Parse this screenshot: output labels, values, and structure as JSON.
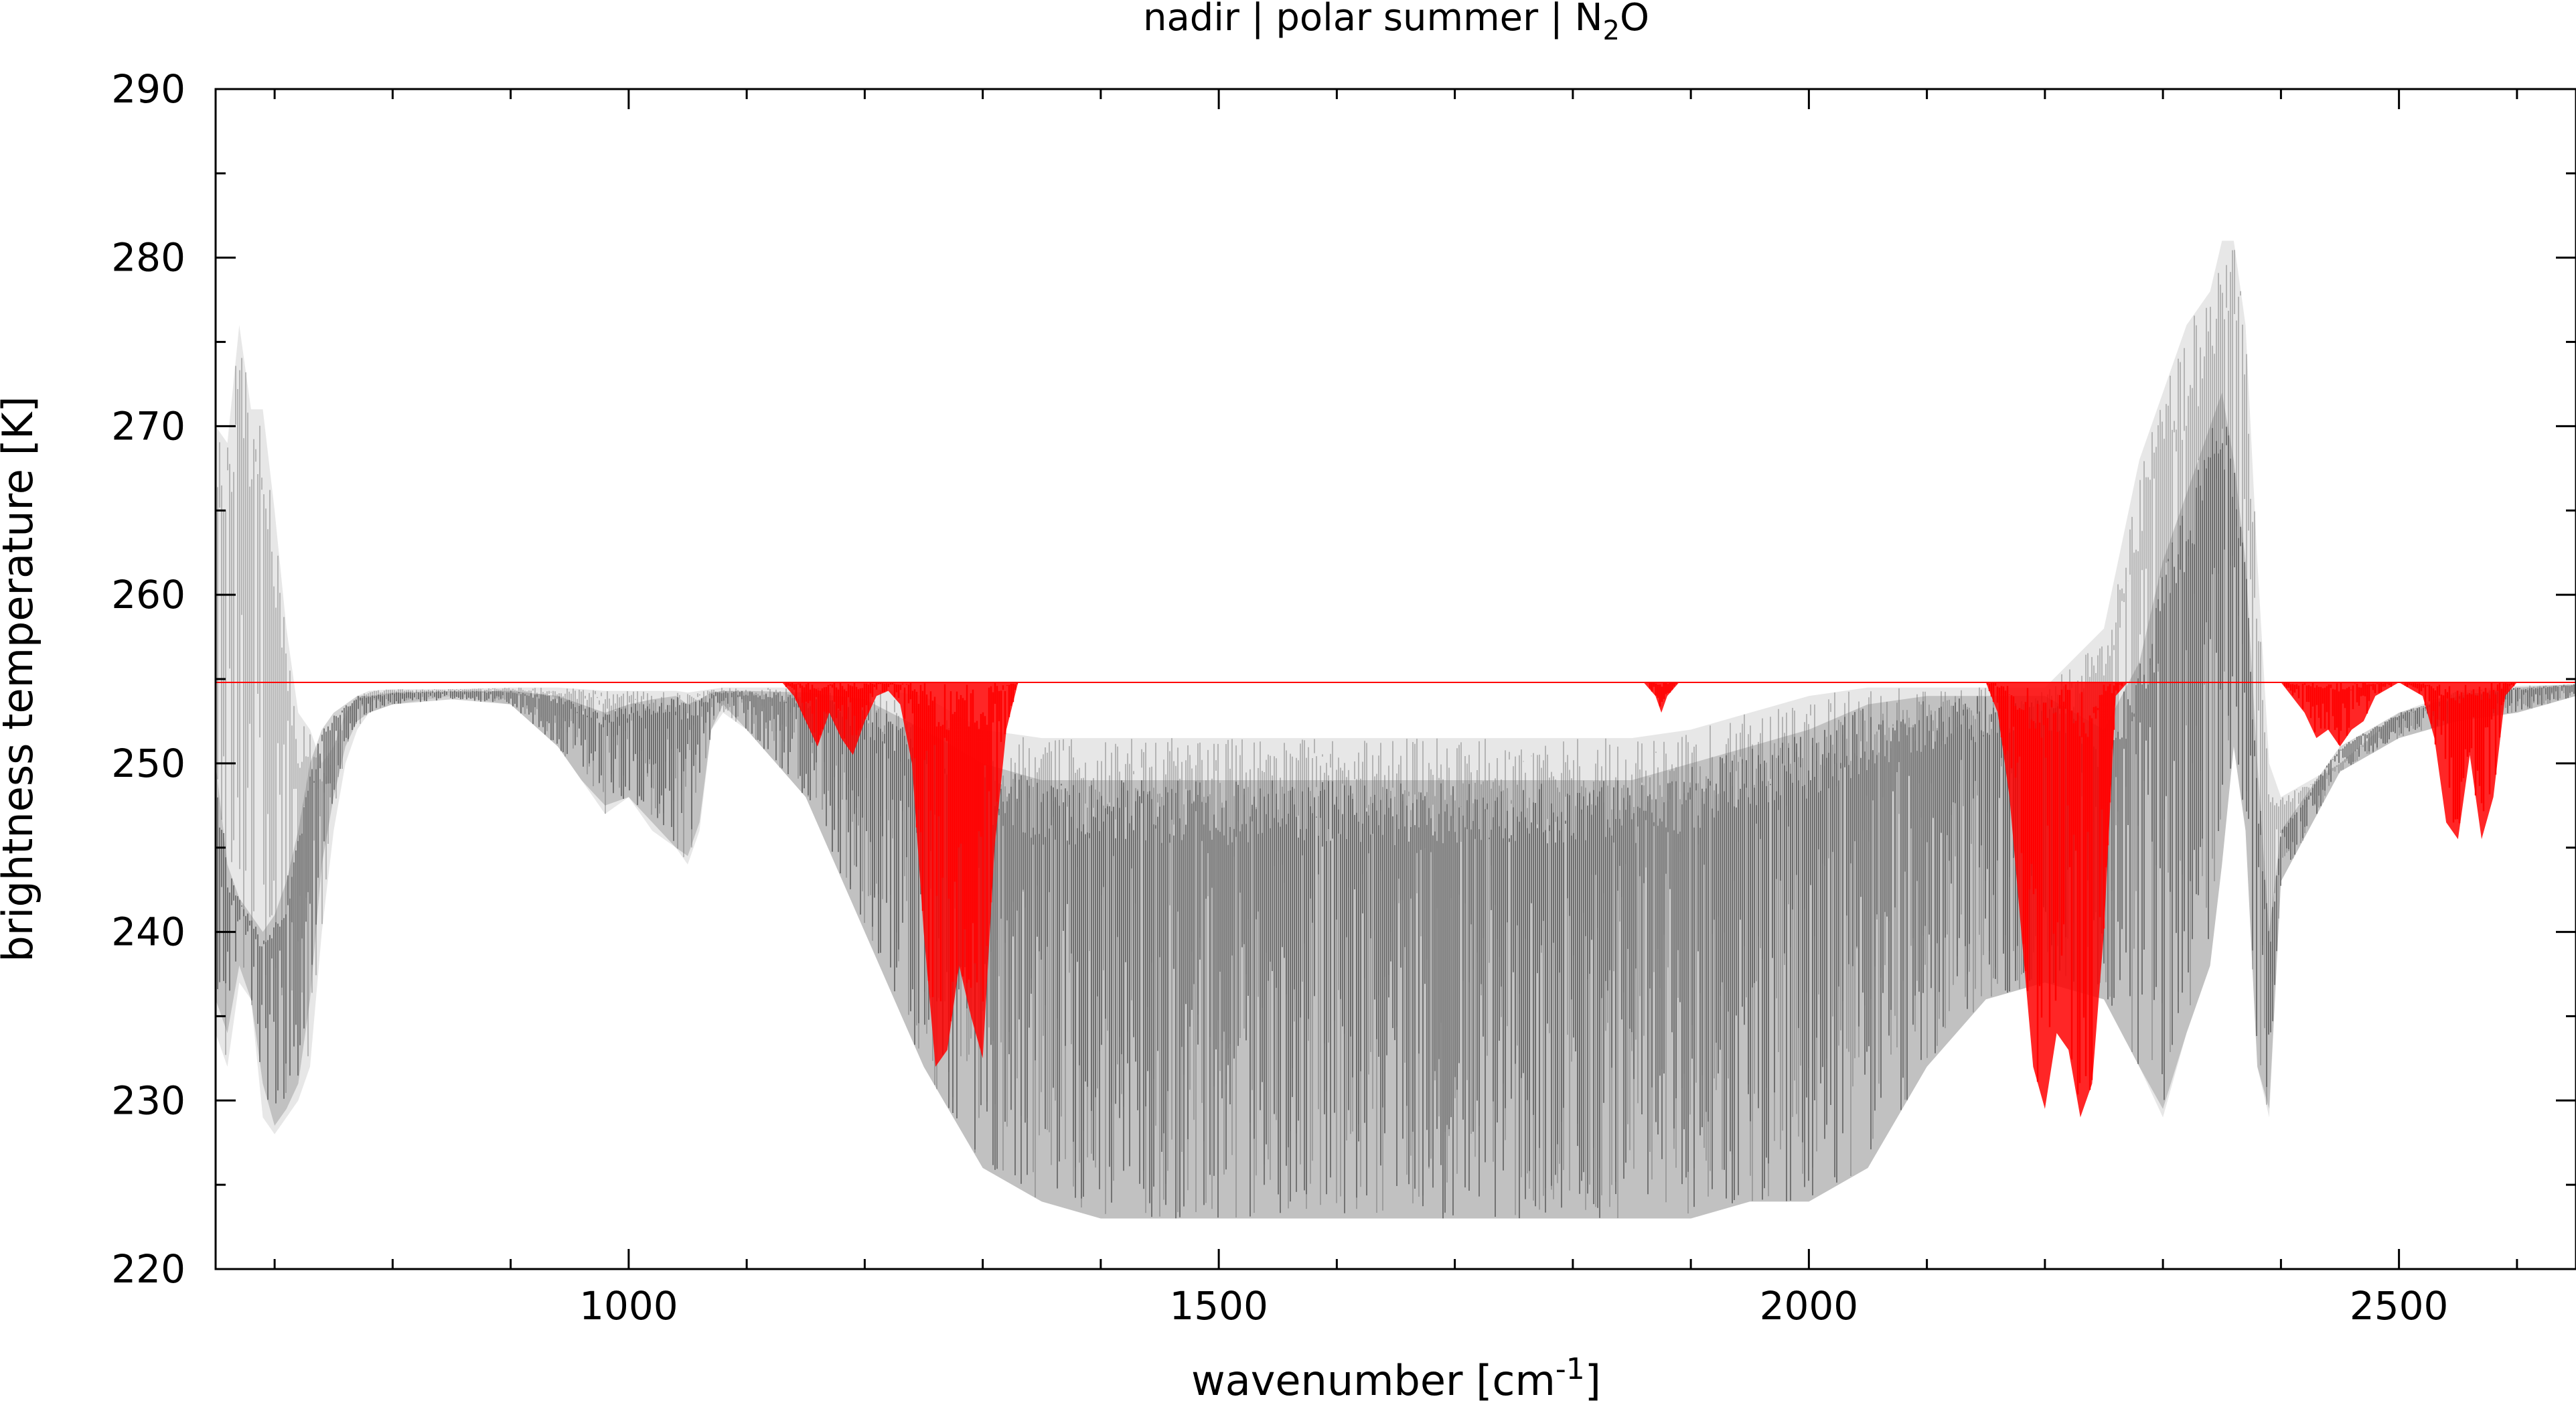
{
  "chart_data": {
    "type": "line",
    "title": {
      "prefix": "nadir | polar summer | N",
      "sub": "2",
      "suffix": "O"
    },
    "xlabel": {
      "prefix": "wavenumber [cm",
      "sup": "-1",
      "suffix": "]"
    },
    "ylabel": "brightness temperature [K]",
    "xlim": [
      650,
      2650
    ],
    "ylim": [
      220,
      290
    ],
    "xticks": [
      1000,
      1500,
      2000,
      2500
    ],
    "yticks": [
      220,
      230,
      240,
      250,
      260,
      270,
      280,
      290
    ],
    "grid": false,
    "legend": "none",
    "series": [
      {
        "style": "envelope",
        "color": "#a8a8a8",
        "x": [
          650,
          660,
          670,
          680,
          690,
          700,
          710,
          720,
          730,
          740,
          750,
          760,
          770,
          780,
          800,
          850,
          900,
          940,
          960,
          980,
          1000,
          1020,
          1040,
          1050,
          1060,
          1070,
          1080,
          1100,
          1150,
          1200,
          1250,
          1300,
          1350,
          1400,
          1450,
          1500,
          1550,
          1600,
          1650,
          1700,
          1750,
          1800,
          1850,
          1900,
          1950,
          2000,
          2050,
          2100,
          2150,
          2200,
          2250,
          2280,
          2300,
          2320,
          2340,
          2350,
          2360,
          2370,
          2380,
          2390,
          2400,
          2450,
          2500,
          2550,
          2600,
          2650
        ],
        "upper": [
          270,
          269,
          276,
          271,
          271,
          265,
          258,
          253,
          252,
          250,
          251,
          253,
          254,
          254.3,
          254.4,
          254.4,
          254.5,
          254.5,
          254.4,
          254.3,
          254.3,
          254.3,
          254.3,
          254.2,
          254.3,
          254.4,
          254.5,
          254.5,
          254.5,
          254.5,
          254,
          252,
          251.5,
          251.5,
          251.5,
          251.5,
          251.5,
          251.5,
          251.5,
          251.5,
          251.5,
          251.5,
          251.5,
          252,
          253,
          254,
          254.5,
          254.5,
          254.5,
          254.5,
          258,
          268,
          272,
          276,
          278,
          281,
          281,
          276,
          262,
          250,
          248,
          250,
          253,
          254.3,
          254.6,
          254.7
        ],
        "lower": [
          234,
          232,
          237,
          236,
          229,
          228,
          229,
          230,
          232,
          240,
          246,
          250,
          252,
          253,
          253.5,
          254,
          253.5,
          251,
          249,
          247,
          248,
          246,
          245,
          244,
          246,
          252,
          253,
          252,
          248,
          240,
          232,
          226,
          224,
          223,
          223,
          223,
          223,
          223,
          223,
          223,
          223,
          223,
          223,
          223,
          224,
          224,
          226,
          232,
          236,
          237,
          236,
          232,
          229,
          234,
          238,
          244,
          251,
          246,
          232,
          229,
          243,
          249.5,
          251.5,
          252.5,
          253,
          254
        ]
      },
      {
        "style": "envelope",
        "color": "#606060",
        "x": [
          650,
          660,
          670,
          680,
          690,
          700,
          710,
          720,
          730,
          740,
          750,
          760,
          770,
          780,
          800,
          850,
          900,
          940,
          960,
          980,
          1000,
          1020,
          1040,
          1050,
          1060,
          1070,
          1080,
          1100,
          1150,
          1200,
          1250,
          1300,
          1350,
          1400,
          1450,
          1500,
          1550,
          1600,
          1650,
          1700,
          1750,
          1800,
          1850,
          1900,
          1950,
          2000,
          2050,
          2100,
          2150,
          2200,
          2250,
          2280,
          2300,
          2320,
          2340,
          2350,
          2360,
          2370,
          2380,
          2390,
          2400,
          2450,
          2500,
          2550,
          2600,
          2650
        ],
        "upper": [
          250,
          244,
          242,
          241,
          240,
          241,
          243,
          246,
          250,
          252,
          253,
          253.5,
          254,
          254,
          254.2,
          254.3,
          254.3,
          254,
          253.5,
          253,
          253.5,
          253.8,
          254,
          253.5,
          253.8,
          254.2,
          254.3,
          254.3,
          254.2,
          253.8,
          252,
          250,
          249,
          249,
          249,
          249,
          249,
          249,
          249,
          249,
          249,
          249,
          249,
          250,
          251,
          252,
          253.5,
          254,
          254,
          254,
          252,
          256,
          262,
          266,
          270,
          272,
          268,
          262,
          250,
          240,
          246,
          251,
          253,
          254,
          254.5,
          254.7
        ],
        "lower": [
          236,
          234,
          238,
          236,
          231,
          228.5,
          229.5,
          231,
          236,
          244,
          248,
          251,
          252.5,
          253,
          253.5,
          253.8,
          253.5,
          251,
          249,
          247.5,
          248,
          246.5,
          245,
          244.5,
          246.5,
          252,
          253.5,
          252,
          248,
          240,
          232,
          226,
          224,
          223,
          223,
          223,
          223,
          223,
          223,
          223,
          223,
          223,
          223,
          223,
          224,
          224,
          226,
          232,
          236,
          237,
          236,
          232,
          229.5,
          234,
          238,
          244,
          251,
          246,
          232,
          229.5,
          243,
          249.5,
          251.5,
          252.5,
          253,
          254
        ]
      },
      {
        "style": "envelope",
        "color": "#ff0000",
        "x": [
          650,
          1130,
          1140,
          1150,
          1160,
          1170,
          1180,
          1190,
          1200,
          1210,
          1220,
          1230,
          1240,
          1250,
          1260,
          1270,
          1280,
          1290,
          1300,
          1310,
          1320,
          1330,
          1860,
          1870,
          1875,
          1880,
          1890,
          2150,
          2160,
          2170,
          2180,
          2190,
          2200,
          2210,
          2220,
          2230,
          2240,
          2250,
          2260,
          2270,
          2400,
          2420,
          2430,
          2440,
          2450,
          2460,
          2470,
          2480,
          2500,
          2520,
          2530,
          2540,
          2550,
          2560,
          2570,
          2580,
          2590,
          2600,
          2650
        ],
        "upper": [
          254.8,
          254.8,
          254.8,
          254.8,
          254.8,
          254.8,
          254.8,
          254.8,
          254.8,
          254.8,
          254.8,
          254.8,
          254.8,
          254.8,
          254.8,
          254.8,
          254.8,
          254.8,
          254.8,
          254.8,
          254.8,
          254.8,
          254.8,
          254.8,
          254.8,
          254.8,
          254.8,
          254.8,
          254.8,
          254.8,
          254.8,
          254.8,
          254.8,
          254.8,
          254.8,
          254.8,
          254.8,
          254.8,
          254.8,
          254.8,
          254.8,
          254.8,
          254.8,
          254.8,
          254.8,
          254.8,
          254.8,
          254.8,
          254.8,
          254.8,
          254.8,
          254.8,
          254.8,
          254.8,
          254.8,
          254.8,
          254.8,
          254.8,
          254.8
        ],
        "lower": [
          254.8,
          254.8,
          254,
          252.5,
          251,
          253,
          251.5,
          250.5,
          252.5,
          254,
          254.3,
          253.5,
          250,
          240,
          232,
          233,
          238,
          235,
          232.5,
          245,
          252,
          254.8,
          254.8,
          254,
          253,
          254,
          254.8,
          254.8,
          253,
          248,
          240,
          232,
          229.5,
          234,
          233,
          229,
          231,
          240,
          254,
          254.8,
          254.8,
          253,
          251.5,
          252,
          251,
          252,
          252.5,
          254,
          254.8,
          254,
          251.5,
          246.5,
          245.5,
          250.5,
          245.5,
          248,
          254,
          254.8,
          254.8
        ]
      }
    ]
  }
}
